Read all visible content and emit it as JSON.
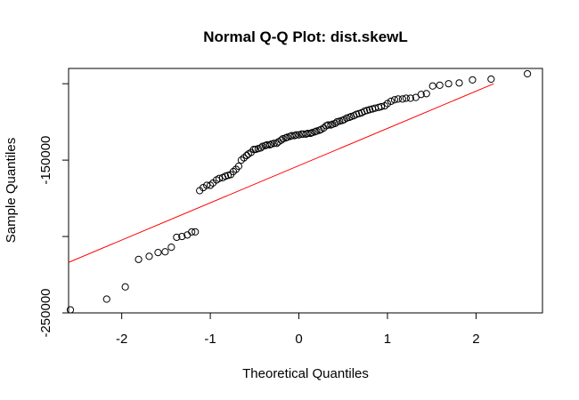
{
  "chart_data": {
    "type": "scatter",
    "title": "Normal Q-Q Plot: dist.skewL",
    "xlabel": "Theoretical Quantiles",
    "ylabel": "Sample Quantiles",
    "xlim": [
      -2.6,
      2.75
    ],
    "ylim": [
      -250000,
      -90000
    ],
    "x_ticks": [
      {
        "value": -2,
        "label": "-2"
      },
      {
        "value": -1,
        "label": "-1"
      },
      {
        "value": 0,
        "label": "0"
      },
      {
        "value": 1,
        "label": "1"
      },
      {
        "value": 2,
        "label": "2"
      }
    ],
    "y_ticks": [
      {
        "value": -250000,
        "label": "-250000",
        "show_label": true
      },
      {
        "value": -200000,
        "label": "",
        "show_label": false
      },
      {
        "value": -150000,
        "label": "-150000",
        "show_label": true
      },
      {
        "value": -100000,
        "label": "",
        "show_label": false
      }
    ],
    "reference_line": {
      "color": "#ff0000",
      "points": [
        [
          -2.89,
          -224000
        ],
        [
          2.2,
          -100000
        ]
      ]
    },
    "point_style": "open-circle",
    "points": [
      [
        -2.58,
        -248000
      ],
      [
        -2.17,
        -241000
      ],
      [
        -1.96,
        -233000
      ],
      [
        -1.81,
        -215000
      ],
      [
        -1.69,
        -213000
      ],
      [
        -1.59,
        -210500
      ],
      [
        -1.51,
        -210000
      ],
      [
        -1.44,
        -207000
      ],
      [
        -1.38,
        -200500
      ],
      [
        -1.32,
        -200000
      ],
      [
        -1.26,
        -199000
      ],
      [
        -1.21,
        -197000
      ],
      [
        -1.17,
        -197000
      ],
      [
        -1.12,
        -170000
      ],
      [
        -1.08,
        -168000
      ],
      [
        -1.04,
        -166500
      ],
      [
        -1.0,
        -166500
      ],
      [
        -0.97,
        -165000
      ],
      [
        -0.93,
        -163000
      ],
      [
        -0.9,
        -162000
      ],
      [
        -0.86,
        -161500
      ],
      [
        -0.83,
        -160500
      ],
      [
        -0.8,
        -160000
      ],
      [
        -0.77,
        -159500
      ],
      [
        -0.74,
        -157500
      ],
      [
        -0.71,
        -156000
      ],
      [
        -0.68,
        -154000
      ],
      [
        -0.65,
        -150000
      ],
      [
        -0.62,
        -148500
      ],
      [
        -0.59,
        -147000
      ],
      [
        -0.57,
        -146000
      ],
      [
        -0.54,
        -145000
      ],
      [
        -0.51,
        -143000
      ],
      [
        -0.49,
        -143000
      ],
      [
        -0.46,
        -142500
      ],
      [
        -0.43,
        -142000
      ],
      [
        -0.41,
        -141000
      ],
      [
        -0.38,
        -140500
      ],
      [
        -0.36,
        -140000
      ],
      [
        -0.33,
        -140000
      ],
      [
        -0.31,
        -139500
      ],
      [
        -0.28,
        -139000
      ],
      [
        -0.25,
        -139000
      ],
      [
        -0.23,
        -138000
      ],
      [
        -0.2,
        -137000
      ],
      [
        -0.18,
        -136000
      ],
      [
        -0.15,
        -135500
      ],
      [
        -0.13,
        -135000
      ],
      [
        -0.1,
        -134500
      ],
      [
        -0.08,
        -134000
      ],
      [
        -0.05,
        -134000
      ],
      [
        -0.03,
        -133500
      ],
      [
        0.0,
        -133500
      ],
      [
        0.03,
        -133000
      ],
      [
        0.05,
        -133000
      ],
      [
        0.08,
        -133000
      ],
      [
        0.1,
        -132500
      ],
      [
        0.13,
        -132500
      ],
      [
        0.15,
        -132000
      ],
      [
        0.18,
        -131500
      ],
      [
        0.2,
        -131000
      ],
      [
        0.23,
        -130500
      ],
      [
        0.25,
        -130000
      ],
      [
        0.28,
        -129000
      ],
      [
        0.31,
        -127500
      ],
      [
        0.33,
        -127000
      ],
      [
        0.36,
        -127000
      ],
      [
        0.38,
        -126500
      ],
      [
        0.41,
        -126000
      ],
      [
        0.43,
        -125000
      ],
      [
        0.46,
        -124500
      ],
      [
        0.49,
        -124000
      ],
      [
        0.51,
        -123500
      ],
      [
        0.54,
        -122500
      ],
      [
        0.57,
        -122000
      ],
      [
        0.59,
        -121500
      ],
      [
        0.62,
        -121000
      ],
      [
        0.65,
        -120000
      ],
      [
        0.68,
        -119500
      ],
      [
        0.71,
        -119000
      ],
      [
        0.74,
        -118000
      ],
      [
        0.77,
        -117500
      ],
      [
        0.8,
        -117000
      ],
      [
        0.83,
        -116500
      ],
      [
        0.86,
        -116000
      ],
      [
        0.9,
        -115500
      ],
      [
        0.93,
        -115000
      ],
      [
        0.97,
        -114500
      ],
      [
        1.0,
        -113000
      ],
      [
        1.04,
        -111500
      ],
      [
        1.08,
        -110500
      ],
      [
        1.12,
        -110000
      ],
      [
        1.17,
        -110000
      ],
      [
        1.21,
        -109500
      ],
      [
        1.26,
        -109500
      ],
      [
        1.32,
        -109000
      ],
      [
        1.38,
        -107000
      ],
      [
        1.44,
        -106500
      ],
      [
        1.51,
        -101500
      ],
      [
        1.59,
        -101000
      ],
      [
        1.69,
        -100000
      ],
      [
        1.81,
        -99500
      ],
      [
        1.96,
        -97500
      ],
      [
        2.17,
        -97000
      ],
      [
        2.58,
        -93500
      ]
    ]
  }
}
